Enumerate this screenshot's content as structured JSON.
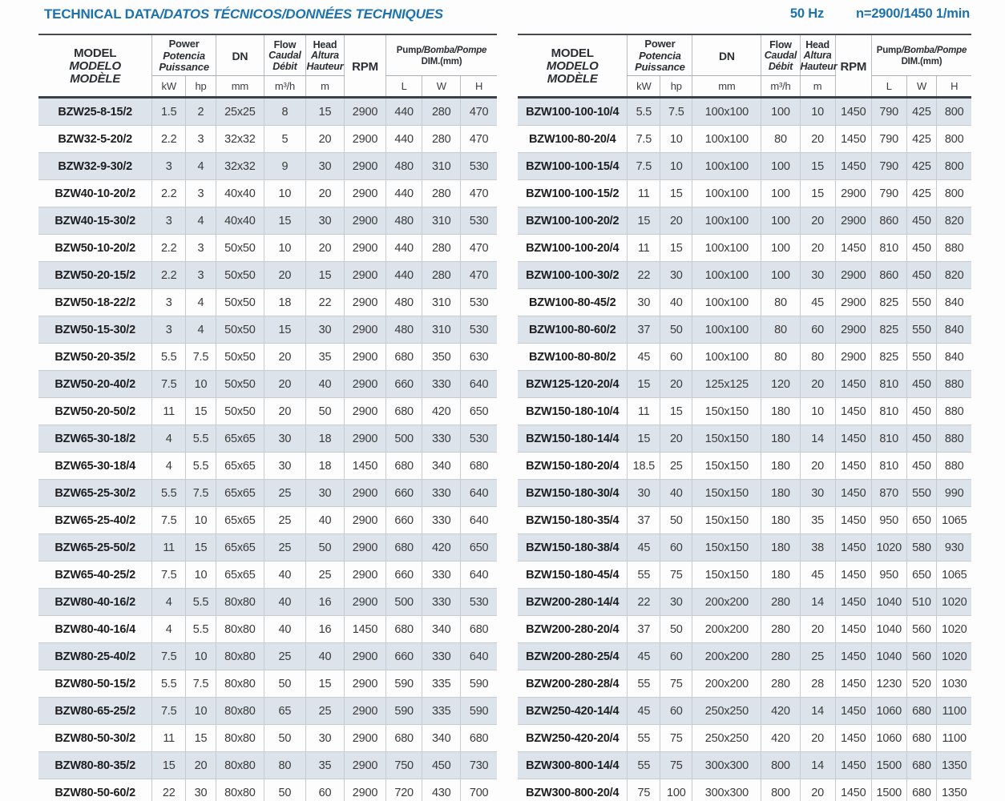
{
  "page": {
    "title_primary": "TECHNICAL DATA",
    "title_secondary": "/DATOS TÉCNICOS/DONNÉES TECHNIQUES",
    "frequency": "50 Hz",
    "speed": "n=2900/1450 1/min",
    "accent_color": "#1d72ae",
    "stripe_color": "#dce3ea"
  },
  "columns": {
    "model": [
      "MODEL",
      "MODELO",
      "MODÈLE"
    ],
    "power_main": "Power",
    "power_sub": [
      "Potencia",
      "Puissance"
    ],
    "power_units": [
      "kW",
      "hp"
    ],
    "dn_label": "DN",
    "dn_unit": "mm",
    "flow_main": "Flow",
    "flow_sub": [
      "Caudal",
      "Débit"
    ],
    "flow_unit": "m³/h",
    "head_main": "Head",
    "head_sub": [
      "Altura",
      "Hauteur"
    ],
    "head_unit": "m",
    "rpm_label": "RPM",
    "dim_main": "Pump",
    "dim_rest": "/Bomba/Pompe",
    "dim_line2": "DIM.(mm)",
    "dim_units": [
      "L",
      "W",
      "H"
    ]
  },
  "left_table": {
    "rows": [
      [
        "BZW25-8-15/2",
        "1.5",
        "2",
        "25x25",
        "8",
        "15",
        "2900",
        "440",
        "280",
        "470"
      ],
      [
        "BZW32-5-20/2",
        "2.2",
        "3",
        "32x32",
        "5",
        "20",
        "2900",
        "440",
        "280",
        "470"
      ],
      [
        "BZW32-9-30/2",
        "3",
        "4",
        "32x32",
        "9",
        "30",
        "2900",
        "480",
        "310",
        "530"
      ],
      [
        "BZW40-10-20/2",
        "2.2",
        "3",
        "40x40",
        "10",
        "20",
        "2900",
        "440",
        "280",
        "470"
      ],
      [
        "BZW40-15-30/2",
        "3",
        "4",
        "40x40",
        "15",
        "30",
        "2900",
        "480",
        "310",
        "530"
      ],
      [
        "BZW50-10-20/2",
        "2.2",
        "3",
        "50x50",
        "10",
        "20",
        "2900",
        "440",
        "280",
        "470"
      ],
      [
        "BZW50-20-15/2",
        "2.2",
        "3",
        "50x50",
        "20",
        "15",
        "2900",
        "440",
        "280",
        "470"
      ],
      [
        "BZW50-18-22/2",
        "3",
        "4",
        "50x50",
        "18",
        "22",
        "2900",
        "480",
        "310",
        "530"
      ],
      [
        "BZW50-15-30/2",
        "3",
        "4",
        "50x50",
        "15",
        "30",
        "2900",
        "480",
        "310",
        "530"
      ],
      [
        "BZW50-20-35/2",
        "5.5",
        "7.5",
        "50x50",
        "20",
        "35",
        "2900",
        "680",
        "350",
        "630"
      ],
      [
        "BZW50-20-40/2",
        "7.5",
        "10",
        "50x50",
        "20",
        "40",
        "2900",
        "660",
        "330",
        "640"
      ],
      [
        "BZW50-20-50/2",
        "11",
        "15",
        "50x50",
        "20",
        "50",
        "2900",
        "680",
        "420",
        "650"
      ],
      [
        "BZW65-30-18/2",
        "4",
        "5.5",
        "65x65",
        "30",
        "18",
        "2900",
        "500",
        "330",
        "530"
      ],
      [
        "BZW65-30-18/4",
        "4",
        "5.5",
        "65x65",
        "30",
        "18",
        "1450",
        "680",
        "340",
        "680"
      ],
      [
        "BZW65-25-30/2",
        "5.5",
        "7.5",
        "65x65",
        "25",
        "30",
        "2900",
        "660",
        "330",
        "640"
      ],
      [
        "BZW65-25-40/2",
        "7.5",
        "10",
        "65x65",
        "25",
        "40",
        "2900",
        "660",
        "330",
        "640"
      ],
      [
        "BZW65-25-50/2",
        "11",
        "15",
        "65x65",
        "25",
        "50",
        "2900",
        "680",
        "420",
        "650"
      ],
      [
        "BZW65-40-25/2",
        "7.5",
        "10",
        "65x65",
        "40",
        "25",
        "2900",
        "660",
        "330",
        "640"
      ],
      [
        "BZW80-40-16/2",
        "4",
        "5.5",
        "80x80",
        "40",
        "16",
        "2900",
        "500",
        "330",
        "530"
      ],
      [
        "BZW80-40-16/4",
        "4",
        "5.5",
        "80x80",
        "40",
        "16",
        "1450",
        "680",
        "340",
        "680"
      ],
      [
        "BZW80-25-40/2",
        "7.5",
        "10",
        "80x80",
        "25",
        "40",
        "2900",
        "660",
        "330",
        "640"
      ],
      [
        "BZW80-50-15/2",
        "5.5",
        "7.5",
        "80x80",
        "50",
        "15",
        "2900",
        "590",
        "335",
        "590"
      ],
      [
        "BZW80-65-25/2",
        "7.5",
        "10",
        "80x80",
        "65",
        "25",
        "2900",
        "590",
        "335",
        "590"
      ],
      [
        "BZW80-50-30/2",
        "11",
        "15",
        "80x80",
        "50",
        "30",
        "2900",
        "680",
        "340",
        "680"
      ],
      [
        "BZW80-80-35/2",
        "15",
        "20",
        "80x80",
        "80",
        "35",
        "2900",
        "750",
        "450",
        "730"
      ],
      [
        "BZW80-50-60/2",
        "22",
        "30",
        "80x80",
        "50",
        "60",
        "2900",
        "720",
        "430",
        "700"
      ]
    ]
  },
  "right_table": {
    "rows": [
      [
        "BZW100-100-10/4",
        "5.5",
        "7.5",
        "100x100",
        "100",
        "10",
        "1450",
        "790",
        "425",
        "800"
      ],
      [
        "BZW100-80-20/4",
        "7.5",
        "10",
        "100x100",
        "80",
        "20",
        "1450",
        "790",
        "425",
        "800"
      ],
      [
        "BZW100-100-15/4",
        "7.5",
        "10",
        "100x100",
        "100",
        "15",
        "1450",
        "790",
        "425",
        "800"
      ],
      [
        "BZW100-100-15/2",
        "11",
        "15",
        "100x100",
        "100",
        "15",
        "2900",
        "790",
        "425",
        "800"
      ],
      [
        "BZW100-100-20/2",
        "15",
        "20",
        "100x100",
        "100",
        "20",
        "2900",
        "860",
        "450",
        "820"
      ],
      [
        "BZW100-100-20/4",
        "11",
        "15",
        "100x100",
        "100",
        "20",
        "1450",
        "810",
        "450",
        "880"
      ],
      [
        "BZW100-100-30/2",
        "22",
        "30",
        "100x100",
        "100",
        "30",
        "2900",
        "860",
        "450",
        "820"
      ],
      [
        "BZW100-80-45/2",
        "30",
        "40",
        "100x100",
        "80",
        "45",
        "2900",
        "825",
        "550",
        "840"
      ],
      [
        "BZW100-80-60/2",
        "37",
        "50",
        "100x100",
        "80",
        "60",
        "2900",
        "825",
        "550",
        "840"
      ],
      [
        "BZW100-80-80/2",
        "45",
        "60",
        "100x100",
        "80",
        "80",
        "2900",
        "825",
        "550",
        "840"
      ],
      [
        "BZW125-120-20/4",
        "15",
        "20",
        "125x125",
        "120",
        "20",
        "1450",
        "810",
        "450",
        "880"
      ],
      [
        "BZW150-180-10/4",
        "11",
        "15",
        "150x150",
        "180",
        "10",
        "1450",
        "810",
        "450",
        "880"
      ],
      [
        "BZW150-180-14/4",
        "15",
        "20",
        "150x150",
        "180",
        "14",
        "1450",
        "810",
        "450",
        "880"
      ],
      [
        "BZW150-180-20/4",
        "18.5",
        "25",
        "150x150",
        "180",
        "20",
        "1450",
        "810",
        "450",
        "880"
      ],
      [
        "BZW150-180-30/4",
        "30",
        "40",
        "150x150",
        "180",
        "30",
        "1450",
        "870",
        "550",
        "990"
      ],
      [
        "BZW150-180-35/4",
        "37",
        "50",
        "150x150",
        "180",
        "35",
        "1450",
        "950",
        "650",
        "1065"
      ],
      [
        "BZW150-180-38/4",
        "45",
        "60",
        "150x150",
        "180",
        "38",
        "1450",
        "1020",
        "580",
        "930"
      ],
      [
        "BZW150-180-45/4",
        "55",
        "75",
        "150x150",
        "180",
        "45",
        "1450",
        "950",
        "650",
        "1065"
      ],
      [
        "BZW200-280-14/4",
        "22",
        "30",
        "200x200",
        "280",
        "14",
        "1450",
        "1040",
        "510",
        "1020"
      ],
      [
        "BZW200-280-20/4",
        "37",
        "50",
        "200x200",
        "280",
        "20",
        "1450",
        "1040",
        "560",
        "1020"
      ],
      [
        "BZW200-280-25/4",
        "45",
        "60",
        "200x200",
        "280",
        "25",
        "1450",
        "1040",
        "560",
        "1020"
      ],
      [
        "BZW200-280-28/4",
        "55",
        "75",
        "200x200",
        "280",
        "28",
        "1450",
        "1230",
        "520",
        "1030"
      ],
      [
        "BZW250-420-14/4",
        "45",
        "60",
        "250x250",
        "420",
        "14",
        "1450",
        "1060",
        "680",
        "1100"
      ],
      [
        "BZW250-420-20/4",
        "55",
        "75",
        "250x250",
        "420",
        "20",
        "1450",
        "1060",
        "680",
        "1100"
      ],
      [
        "BZW300-800-14/4",
        "55",
        "75",
        "300x300",
        "800",
        "14",
        "1450",
        "1500",
        "680",
        "1350"
      ],
      [
        "BZW300-800-20/4",
        "75",
        "100",
        "300x300",
        "800",
        "20",
        "1450",
        "1500",
        "680",
        "1350"
      ]
    ]
  }
}
